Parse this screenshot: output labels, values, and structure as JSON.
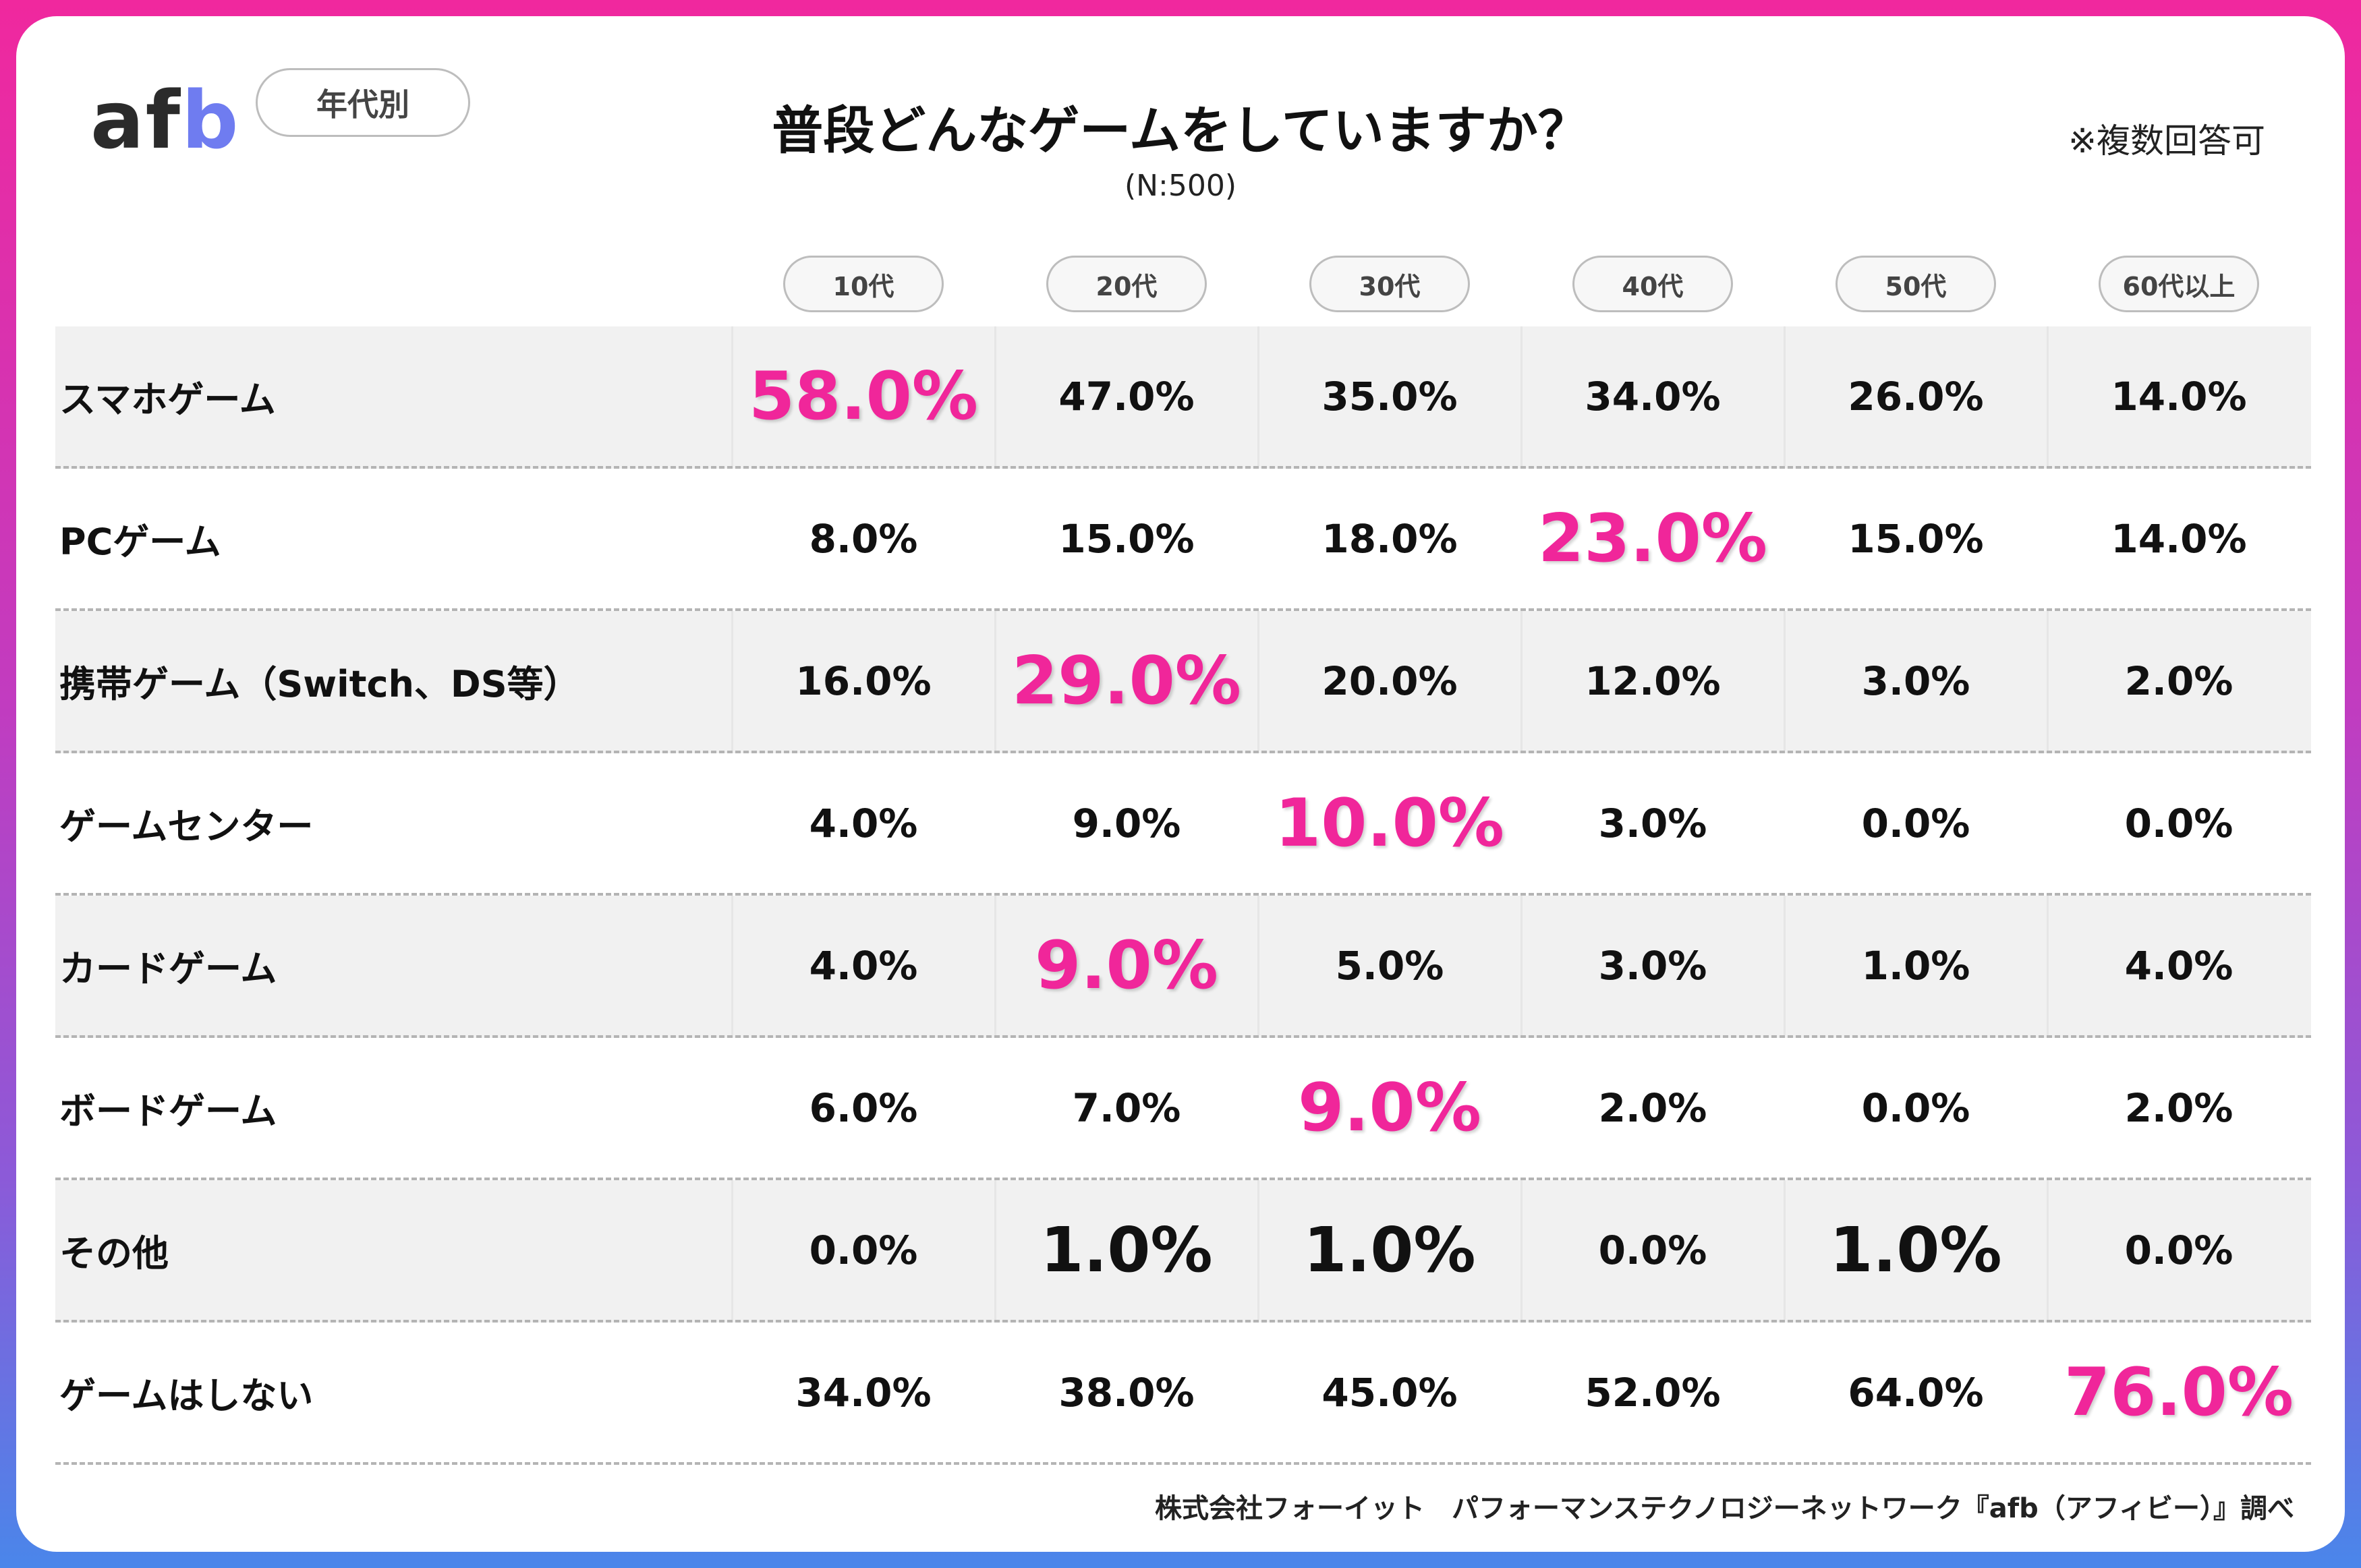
{
  "header": {
    "logo_text": "afb",
    "category_pill": "年代別",
    "title": "普段どんなゲームをしていますか？",
    "subtitle": "(N:500)",
    "note": "※複数回答可"
  },
  "colors": {
    "highlight": "#f0269a",
    "frame_gradient": [
      "#f0289e",
      "#c13cc0",
      "#8c5ad8",
      "#4a86ea"
    ],
    "row_shade": "#f1f1f1"
  },
  "chart_data": {
    "type": "table",
    "title": "普段どんなゲームをしていますか？",
    "columns": [
      "10代",
      "20代",
      "30代",
      "40代",
      "50代",
      "60代以上"
    ],
    "rows": [
      {
        "label": "スマホゲーム",
        "values": [
          "58.0%",
          "47.0%",
          "35.0%",
          "34.0%",
          "26.0%",
          "14.0%"
        ],
        "highlight": [
          0
        ],
        "big": []
      },
      {
        "label": "PCゲーム",
        "values": [
          "8.0%",
          "15.0%",
          "18.0%",
          "23.0%",
          "15.0%",
          "14.0%"
        ],
        "highlight": [
          3
        ],
        "big": []
      },
      {
        "label": "携帯ゲーム（Switch、DS等）",
        "values": [
          "16.0%",
          "29.0%",
          "20.0%",
          "12.0%",
          "3.0%",
          "2.0%"
        ],
        "highlight": [
          1
        ],
        "big": []
      },
      {
        "label": "ゲームセンター",
        "values": [
          "4.0%",
          "9.0%",
          "10.0%",
          "3.0%",
          "0.0%",
          "0.0%"
        ],
        "highlight": [
          2
        ],
        "big": []
      },
      {
        "label": "カードゲーム",
        "values": [
          "4.0%",
          "9.0%",
          "5.0%",
          "3.0%",
          "1.0%",
          "4.0%"
        ],
        "highlight": [
          1
        ],
        "big": []
      },
      {
        "label": "ボードゲーム",
        "values": [
          "6.0%",
          "7.0%",
          "9.0%",
          "2.0%",
          "0.0%",
          "2.0%"
        ],
        "highlight": [
          2
        ],
        "big": []
      },
      {
        "label": "その他",
        "values": [
          "0.0%",
          "1.0%",
          "1.0%",
          "0.0%",
          "1.0%",
          "0.0%"
        ],
        "highlight": [],
        "big": [
          1,
          2,
          4
        ]
      },
      {
        "label": "ゲームはしない",
        "values": [
          "34.0%",
          "38.0%",
          "45.0%",
          "52.0%",
          "64.0%",
          "76.0%"
        ],
        "highlight": [
          5
        ],
        "big": []
      }
    ]
  },
  "footer": {
    "source": "株式会社フォーイット　パフォーマンステクノロジーネットワーク『afb（アフィビー）』調べ"
  }
}
